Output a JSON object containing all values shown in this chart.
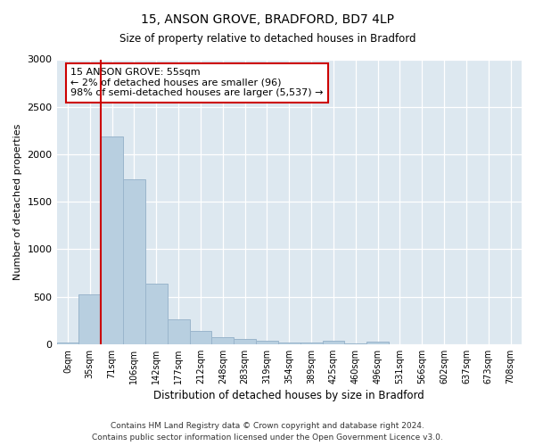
{
  "title1": "15, ANSON GROVE, BRADFORD, BD7 4LP",
  "title2": "Size of property relative to detached houses in Bradford",
  "xlabel": "Distribution of detached houses by size in Bradford",
  "ylabel": "Number of detached properties",
  "bin_labels": [
    "0sqm",
    "35sqm",
    "71sqm",
    "106sqm",
    "142sqm",
    "177sqm",
    "212sqm",
    "248sqm",
    "283sqm",
    "319sqm",
    "354sqm",
    "389sqm",
    "425sqm",
    "460sqm",
    "496sqm",
    "531sqm",
    "566sqm",
    "602sqm",
    "637sqm",
    "673sqm",
    "708sqm"
  ],
  "bar_heights": [
    20,
    520,
    2190,
    1740,
    635,
    265,
    140,
    75,
    50,
    40,
    20,
    15,
    35,
    5,
    25,
    0,
    0,
    0,
    0,
    0,
    0
  ],
  "bar_color": "#b8cfe0",
  "bar_edge_color": "#9ab5cc",
  "vline_x": 1.5,
  "vline_color": "#cc0000",
  "annotation_text": "15 ANSON GROVE: 55sqm\n← 2% of detached houses are smaller (96)\n98% of semi-detached houses are larger (5,537) →",
  "annotation_box_color": "#ffffff",
  "annotation_box_edge": "#cc0000",
  "ylim": [
    0,
    3000
  ],
  "yticks": [
    0,
    500,
    1000,
    1500,
    2000,
    2500,
    3000
  ],
  "footer": "Contains HM Land Registry data © Crown copyright and database right 2024.\nContains public sector information licensed under the Open Government Licence v3.0.",
  "fig_bg_color": "#ffffff",
  "plot_bg_color": "#dde8f0"
}
